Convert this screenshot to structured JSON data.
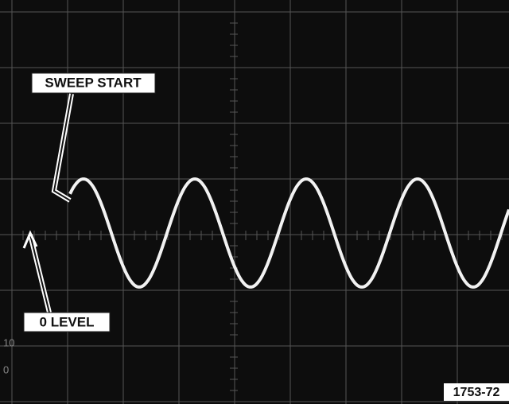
{
  "labels": {
    "sweep_start": "SWEEP START",
    "zero_level": "0 LEVEL",
    "figure_id": "1753-72"
  },
  "graticule": {
    "upper": "10",
    "lower": "0"
  }
}
